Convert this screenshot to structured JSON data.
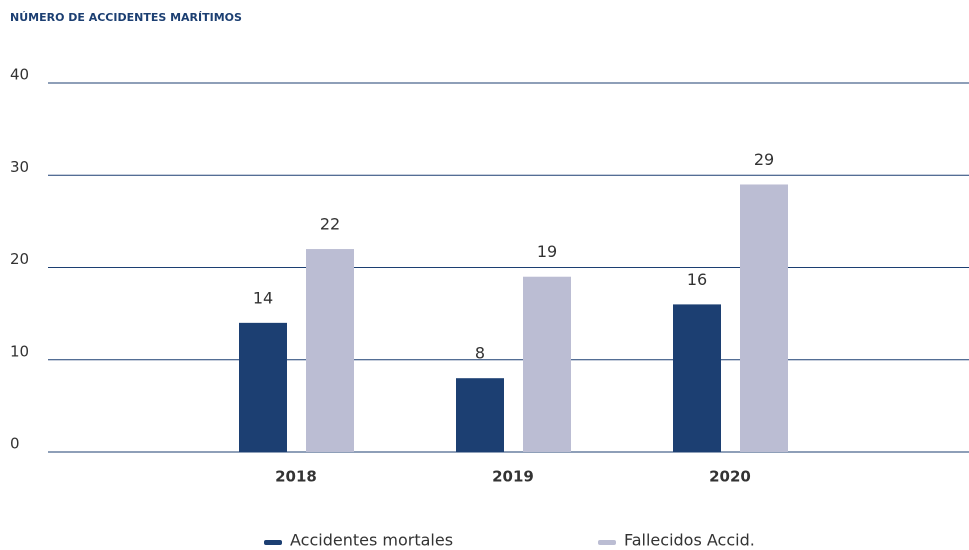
{
  "chart_data": {
    "type": "bar",
    "title": "NÚMERO DE ACCIDENTES MARÍTIMOS",
    "categories": [
      "2018",
      "2019",
      "2020"
    ],
    "series": [
      {
        "name": "Accidentes mortales",
        "color": "#1c3f72",
        "values": [
          14,
          8,
          16
        ]
      },
      {
        "name": "Fallecidos Accid.",
        "color": "#bbbdd3",
        "values": [
          22,
          19,
          29
        ]
      }
    ],
    "ylim": [
      0,
      40
    ],
    "yticks": [
      0,
      10,
      20,
      30,
      40
    ],
    "grid": true
  }
}
